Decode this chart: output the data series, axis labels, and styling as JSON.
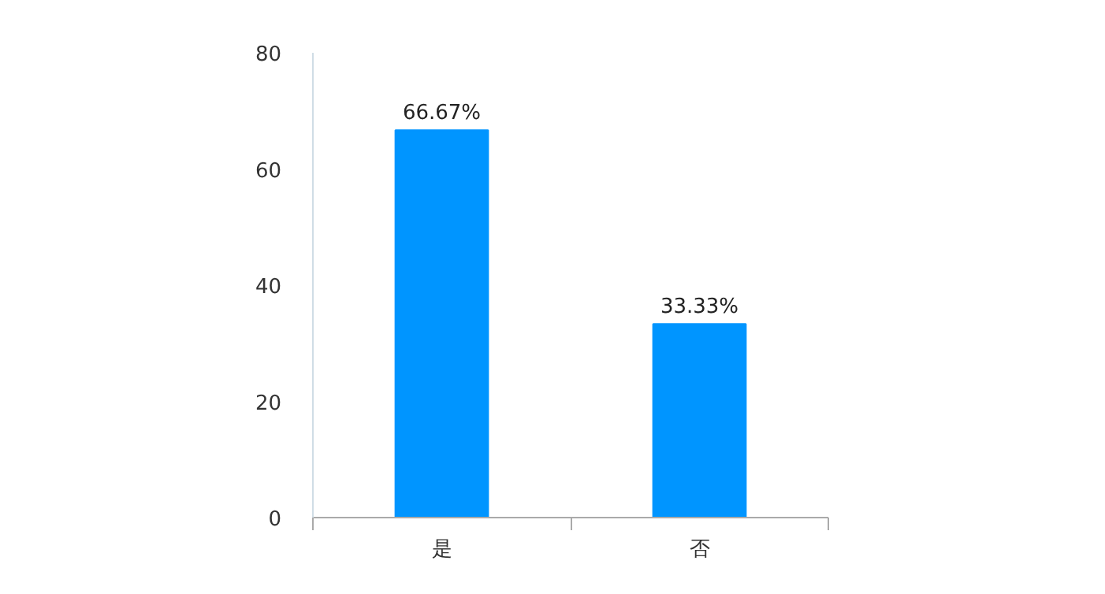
{
  "chart_data": {
    "type": "bar",
    "categories": [
      "是",
      "否"
    ],
    "values": [
      66.67,
      33.33
    ],
    "value_labels": [
      "66.67%",
      "33.33%"
    ],
    "color": "#0095ff",
    "ylim": [
      0,
      80
    ],
    "yticks": [
      0,
      20,
      40,
      60,
      80
    ],
    "grid": false
  }
}
